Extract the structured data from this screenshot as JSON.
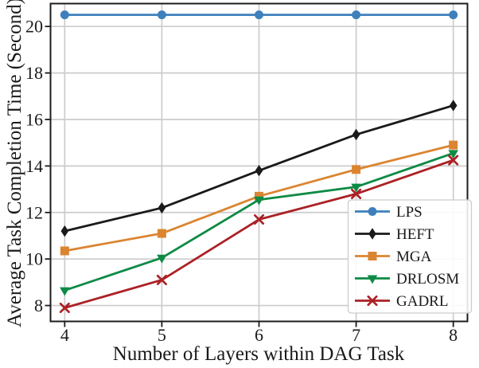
{
  "chart_data": {
    "type": "line",
    "title": "",
    "xlabel": "Number of Layers within DAG Task",
    "ylabel": "Average Task Completion Time (Second)",
    "x": [
      4,
      5,
      6,
      7,
      8
    ],
    "xlim": [
      3.85,
      8.15
    ],
    "ylim": [
      7.3,
      21.0
    ],
    "xticks": [
      4,
      5,
      6,
      7,
      8
    ],
    "yticks": [
      8,
      10,
      12,
      14,
      16,
      18,
      20
    ],
    "grid": true,
    "grid_color": "#cccccc",
    "spine_color": "#1c1c1c",
    "legend_position": "lower-right-inside",
    "series": [
      {
        "name": "LPS",
        "color": "#3e80bc",
        "marker": "circle",
        "values": [
          20.5,
          20.5,
          20.5,
          20.5,
          20.5
        ]
      },
      {
        "name": "HEFT",
        "color": "#1a1a1a",
        "marker": "thin-diamond",
        "values": [
          11.2,
          12.2,
          13.8,
          15.35,
          16.6
        ]
      },
      {
        "name": "MGA",
        "color": "#db8531",
        "marker": "square",
        "values": [
          10.35,
          11.1,
          12.7,
          13.85,
          14.9
        ]
      },
      {
        "name": "DRLOSM",
        "color": "#0e8a45",
        "marker": "triangle-down",
        "values": [
          8.65,
          10.05,
          12.55,
          13.1,
          14.55
        ]
      },
      {
        "name": "GADRL",
        "color": "#ab2125",
        "marker": "x",
        "values": [
          7.9,
          9.1,
          11.7,
          12.8,
          14.25
        ]
      }
    ]
  }
}
